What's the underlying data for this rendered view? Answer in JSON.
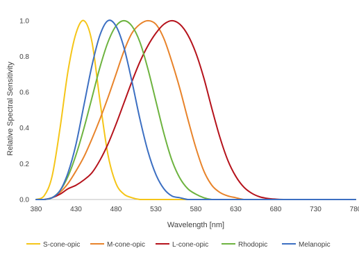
{
  "chart_data": {
    "type": "line",
    "title": "",
    "xlabel": "Wavelength [nm]",
    "ylabel": "Relative Spectral Sensitivity",
    "xlim": [
      380,
      780
    ],
    "ylim": [
      0,
      1.1
    ],
    "x_ticks": [
      "380",
      "430",
      "480",
      "530",
      "580",
      "630",
      "680",
      "730",
      "780"
    ],
    "y_ticks": [
      "0.0",
      "0.2",
      "0.4",
      "0.6",
      "0.8",
      "1.0"
    ],
    "grid": false,
    "legend_position": "bottom",
    "x": [
      380,
      390,
      400,
      410,
      420,
      430,
      440,
      450,
      460,
      470,
      480,
      490,
      500,
      510,
      520,
      530,
      540,
      550,
      560,
      570,
      580,
      590,
      600,
      610,
      620,
      630,
      640,
      650,
      660,
      670,
      680,
      690,
      700,
      710,
      720,
      730,
      740,
      750,
      760,
      770,
      780
    ],
    "series": [
      {
        "name": "S-cone-opic",
        "color": "#F5C518",
        "values": [
          0.0,
          0.02,
          0.13,
          0.4,
          0.72,
          0.93,
          1.0,
          0.88,
          0.55,
          0.25,
          0.09,
          0.03,
          0.01,
          0.0,
          0,
          0,
          0,
          0,
          0,
          0,
          0,
          0,
          0,
          0,
          0,
          0,
          0,
          0,
          0,
          0,
          0,
          0,
          0,
          0,
          0,
          0,
          0,
          0,
          0,
          0,
          0
        ]
      },
      {
        "name": "M-cone-opic",
        "color": "#E8832A",
        "values": [
          0.0,
          0.0,
          0.01,
          0.04,
          0.09,
          0.16,
          0.24,
          0.34,
          0.45,
          0.57,
          0.7,
          0.83,
          0.93,
          0.98,
          1.0,
          0.98,
          0.9,
          0.77,
          0.62,
          0.45,
          0.29,
          0.16,
          0.08,
          0.04,
          0.02,
          0.01,
          0.0,
          0,
          0,
          0,
          0,
          0,
          0,
          0,
          0,
          0,
          0,
          0,
          0,
          0,
          0
        ]
      },
      {
        "name": "L-cone-opic",
        "color": "#B5121B",
        "values": [
          0.0,
          0.0,
          0.01,
          0.03,
          0.06,
          0.08,
          0.11,
          0.15,
          0.22,
          0.31,
          0.42,
          0.54,
          0.66,
          0.77,
          0.86,
          0.93,
          0.98,
          1.0,
          0.98,
          0.92,
          0.82,
          0.68,
          0.51,
          0.35,
          0.22,
          0.13,
          0.07,
          0.035,
          0.015,
          0.006,
          0.002,
          0,
          0,
          0,
          0,
          0,
          0,
          0,
          0,
          0,
          0
        ]
      },
      {
        "name": "Rhodopic",
        "color": "#6DB33F",
        "values": [
          0.0,
          0.0,
          0.01,
          0.05,
          0.13,
          0.25,
          0.4,
          0.57,
          0.74,
          0.88,
          0.97,
          1.0,
          0.97,
          0.88,
          0.73,
          0.55,
          0.37,
          0.22,
          0.12,
          0.06,
          0.03,
          0.01,
          0.0,
          0,
          0,
          0,
          0,
          0,
          0,
          0,
          0,
          0,
          0,
          0,
          0,
          0,
          0,
          0,
          0,
          0,
          0
        ]
      },
      {
        "name": "Melanopic",
        "color": "#3C6FC2",
        "values": [
          0.0,
          0.0,
          0.01,
          0.05,
          0.15,
          0.31,
          0.53,
          0.75,
          0.92,
          1.0,
          0.97,
          0.85,
          0.66,
          0.45,
          0.27,
          0.14,
          0.06,
          0.02,
          0.01,
          0.0,
          0,
          0,
          0,
          0,
          0,
          0,
          0,
          0,
          0,
          0,
          0,
          0,
          0,
          0,
          0,
          0,
          0,
          0,
          0,
          0,
          0
        ]
      }
    ]
  }
}
